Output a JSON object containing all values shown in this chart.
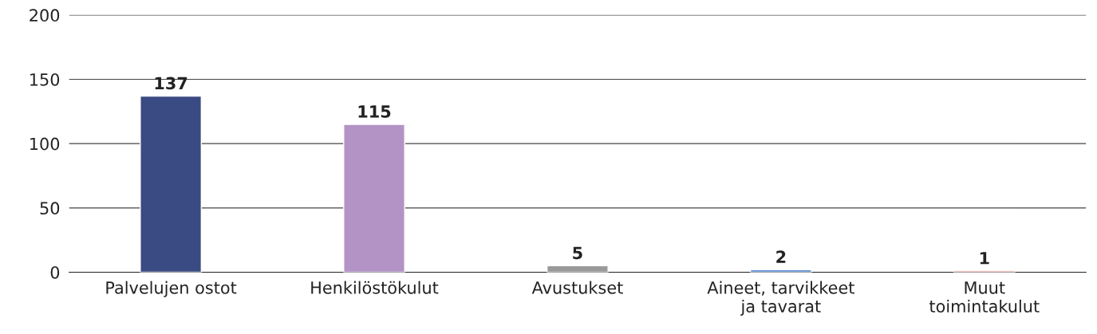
{
  "chart_data": {
    "type": "bar",
    "categories": [
      "Palvelujen ostot",
      "Henkilöstökulut",
      "Avustukset",
      "Aineet, tarvikkeet\nja tavarat",
      "Muut\ntoimintakulut"
    ],
    "values": [
      137,
      115,
      5,
      2,
      1
    ],
    "colors": [
      "#3a4a82",
      "#b393c6",
      "#999999",
      "#5b8fd4",
      "#d0312d"
    ],
    "ylim": [
      0,
      200
    ],
    "yticks": [
      0,
      50,
      100,
      150,
      200
    ],
    "grid": "y",
    "data_labels": true
  }
}
